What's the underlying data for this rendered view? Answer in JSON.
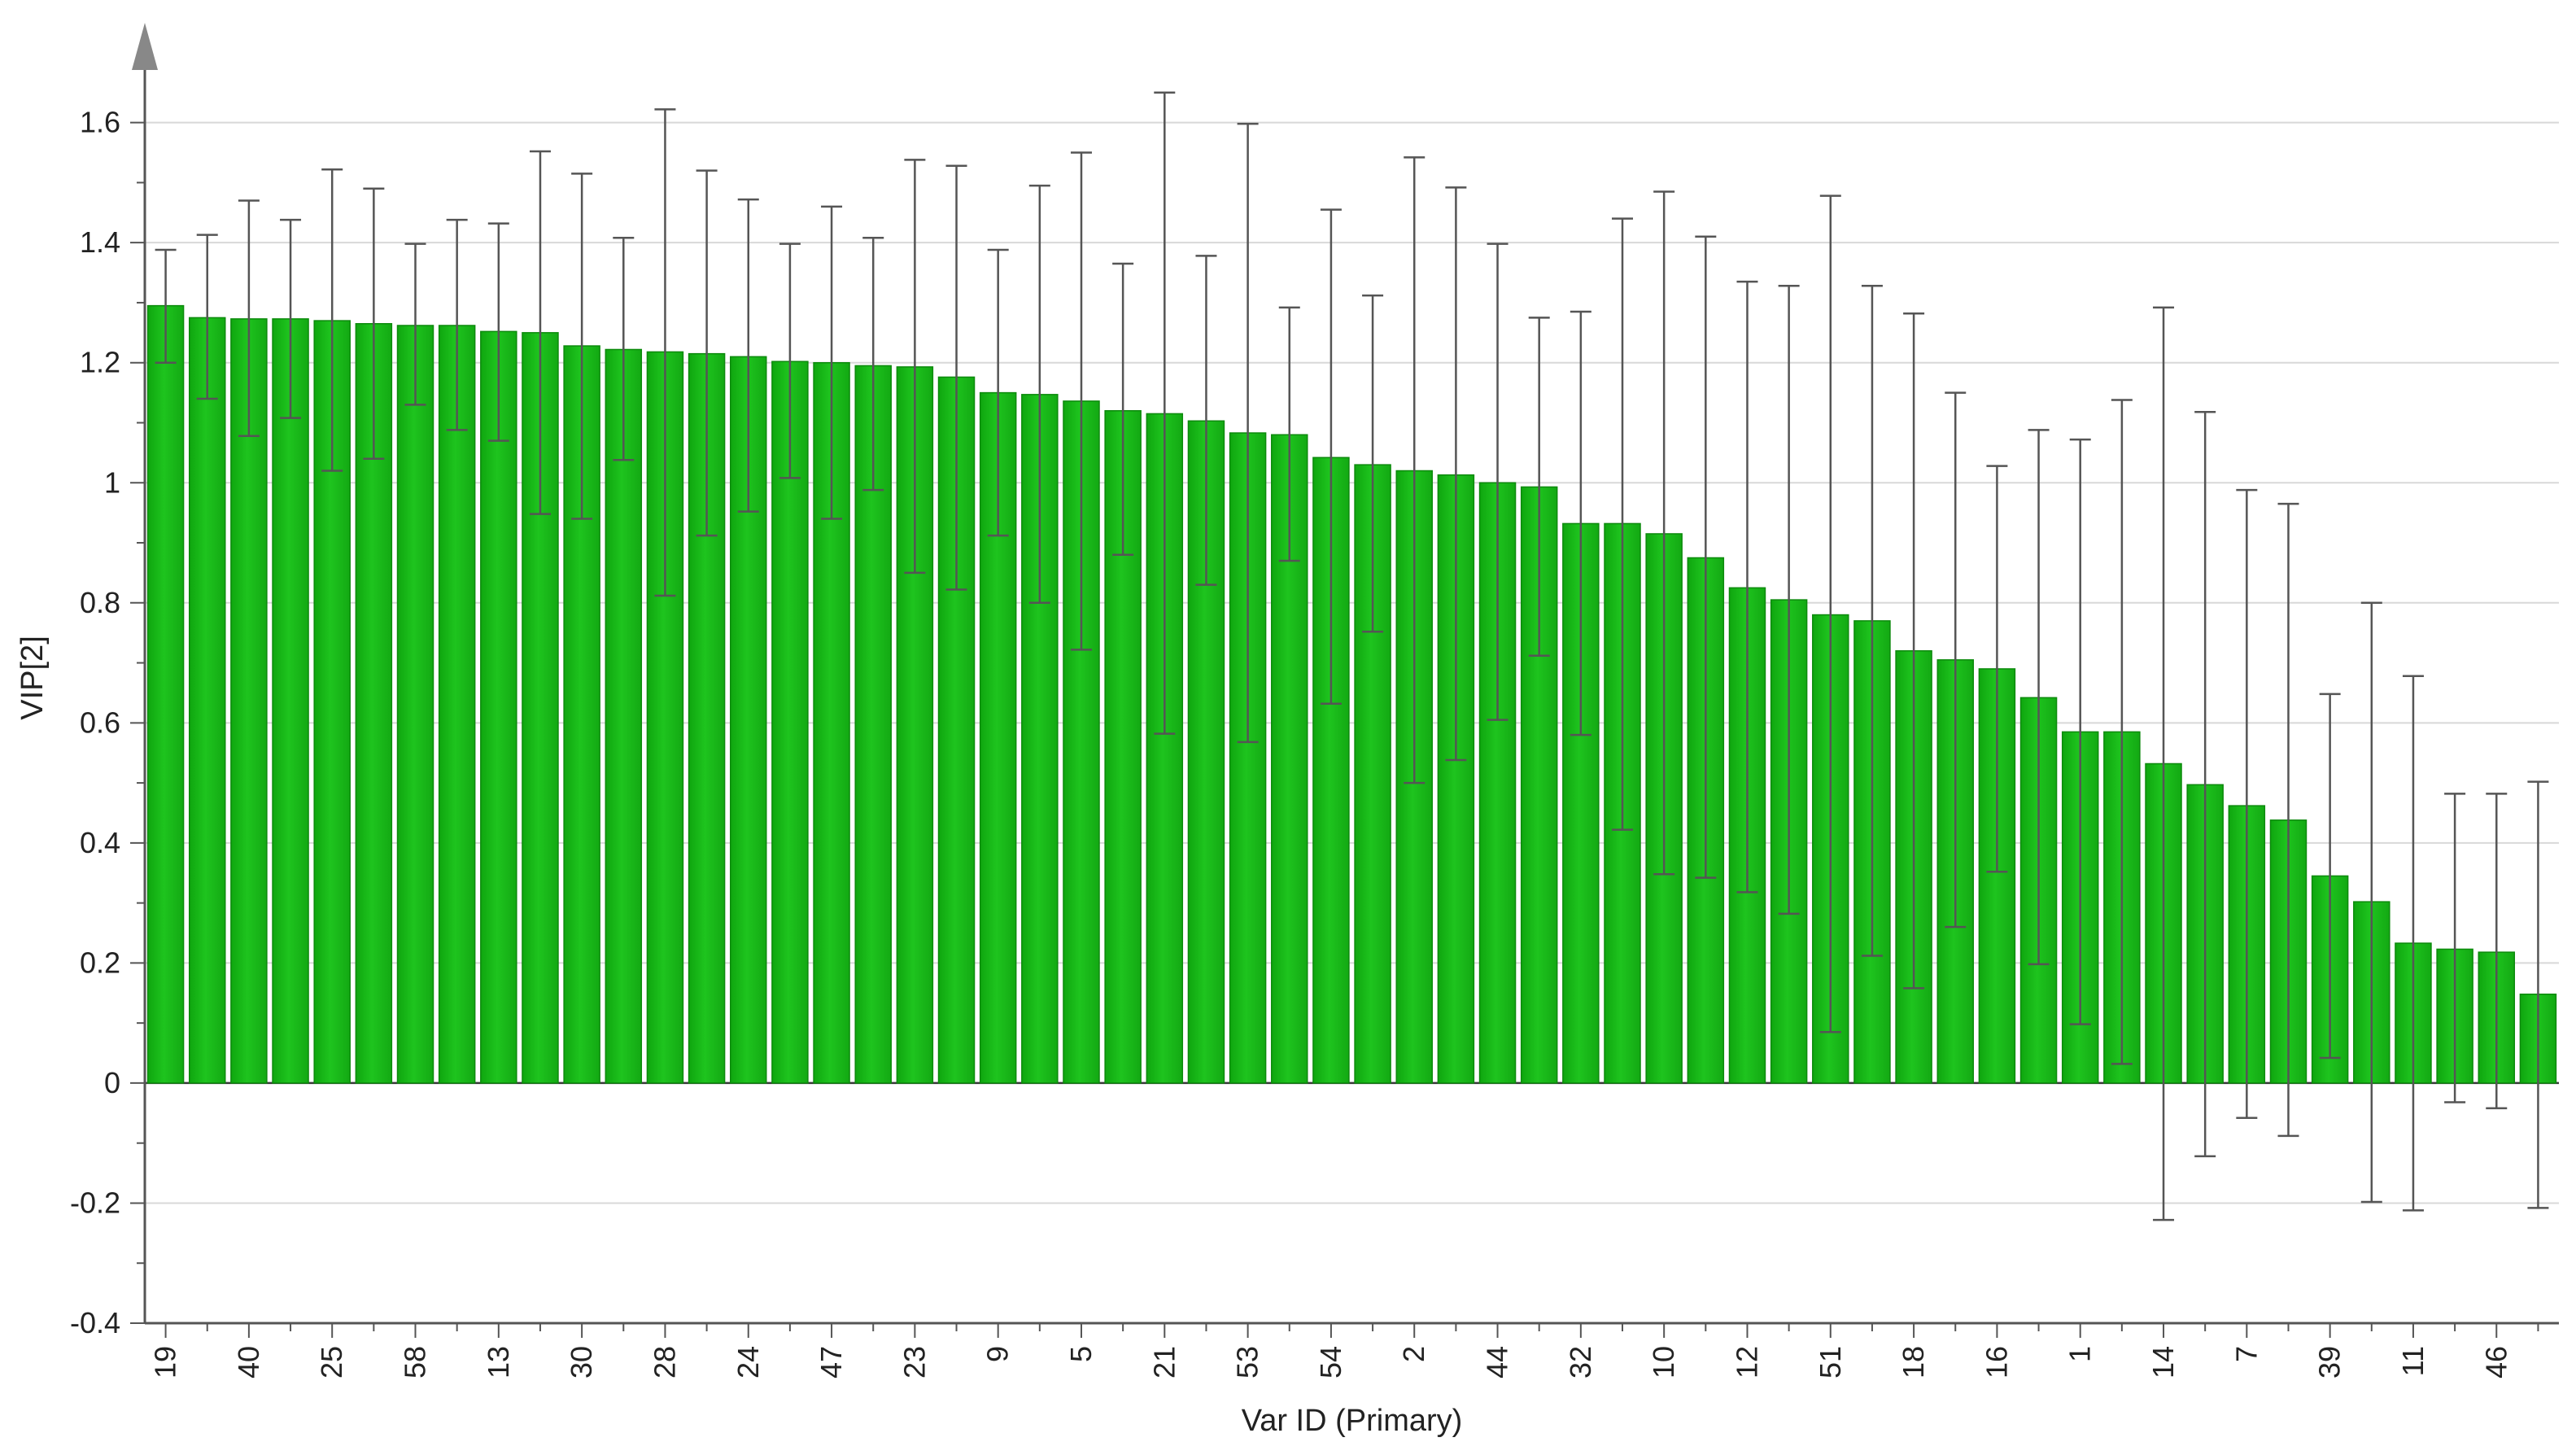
{
  "chart_data": {
    "type": "bar",
    "title": "",
    "xlabel": "Var ID (Primary)",
    "ylabel": "VIP[2]",
    "ylim": [
      -0.4,
      1.75
    ],
    "yticks": [
      -0.4,
      -0.2,
      0,
      0.2,
      0.4,
      0.6,
      0.8,
      1,
      1.2,
      1.4,
      1.6
    ],
    "ytick_labels": [
      "-0.4",
      "-0.2",
      "0",
      "0.2",
      "0.4",
      "0.6",
      "0.8",
      "1",
      "1.2",
      "1.4",
      "1.6"
    ],
    "grid": "horizontal",
    "bar_color": "#1ec41e",
    "errorbar_color": "#555555",
    "labeled_categories": [
      "19",
      "40",
      "25",
      "58",
      "13",
      "30",
      "28",
      "24",
      "47",
      "23",
      "9",
      "5",
      "21",
      "53",
      "54",
      "2",
      "44",
      "32",
      "10",
      "12",
      "51",
      "18",
      "16",
      "1",
      "14",
      "7",
      "39",
      "11",
      "46"
    ],
    "values": [
      1.295,
      1.275,
      1.273,
      1.273,
      1.27,
      1.265,
      1.262,
      1.262,
      1.252,
      1.25,
      1.228,
      1.222,
      1.218,
      1.215,
      1.21,
      1.202,
      1.2,
      1.195,
      1.193,
      1.176,
      1.15,
      1.147,
      1.136,
      1.12,
      1.115,
      1.103,
      1.083,
      1.08,
      1.042,
      1.03,
      1.02,
      1.013,
      1.0,
      0.993,
      0.932,
      0.932,
      0.915,
      0.875,
      0.825,
      0.805,
      0.78,
      0.77,
      0.72,
      0.705,
      0.69,
      0.642,
      0.585,
      0.585,
      0.532,
      0.497,
      0.462,
      0.438,
      0.345,
      0.302,
      0.233,
      0.223,
      0.218,
      0.148
    ],
    "err_low": [
      1.2,
      1.14,
      1.078,
      1.108,
      1.02,
      1.04,
      1.13,
      1.088,
      1.07,
      0.948,
      0.94,
      1.038,
      0.812,
      0.912,
      0.952,
      1.008,
      0.94,
      0.988,
      0.85,
      0.822,
      0.912,
      0.8,
      0.722,
      0.88,
      0.582,
      0.83,
      0.568,
      0.87,
      0.632,
      0.752,
      0.5,
      0.538,
      0.605,
      0.712,
      0.58,
      0.422,
      0.348,
      0.342,
      0.318,
      0.282,
      0.085,
      0.212,
      0.158,
      0.26,
      0.352,
      0.198,
      0.098,
      0.032,
      -0.228,
      -0.122,
      -0.058,
      -0.088,
      0.042,
      -0.198,
      -0.212,
      -0.032,
      -0.042,
      -0.208
    ],
    "err_high": [
      1.388,
      1.413,
      1.47,
      1.438,
      1.522,
      1.49,
      1.398,
      1.438,
      1.432,
      1.552,
      1.515,
      1.408,
      1.622,
      1.52,
      1.472,
      1.398,
      1.46,
      1.408,
      1.538,
      1.528,
      1.388,
      1.495,
      1.55,
      1.365,
      1.65,
      1.378,
      1.598,
      1.292,
      1.455,
      1.312,
      1.542,
      1.492,
      1.398,
      1.275,
      1.285,
      1.44,
      1.485,
      1.41,
      1.335,
      1.328,
      1.478,
      1.328,
      1.282,
      1.15,
      1.028,
      1.088,
      1.072,
      1.138,
      1.292,
      1.118,
      0.988,
      0.965,
      0.648,
      0.8,
      0.678,
      0.482,
      0.482,
      0.502
    ]
  }
}
